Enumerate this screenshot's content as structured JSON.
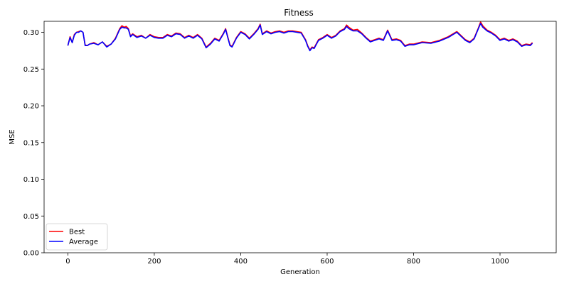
{
  "chart_data": {
    "type": "line",
    "title": "Fitness",
    "xlabel": "Generation",
    "ylabel": "MSE",
    "xlim": [
      -55,
      1130
    ],
    "ylim": [
      0,
      0.315
    ],
    "x_ticks": [
      0,
      200,
      400,
      600,
      800,
      1000
    ],
    "x_tick_labels": [
      "0",
      "200",
      "400",
      "600",
      "800",
      "1000"
    ],
    "y_ticks": [
      0.0,
      0.05,
      0.1,
      0.15,
      0.2,
      0.25,
      0.3
    ],
    "y_tick_labels": [
      "0.00",
      "0.05",
      "0.10",
      "0.15",
      "0.20",
      "0.25",
      "0.30"
    ],
    "grid": false,
    "legend_position": "lower-left",
    "series": [
      {
        "name": "Best",
        "color": "#ff0000",
        "x": [
          0,
          5,
          10,
          15,
          20,
          25,
          30,
          35,
          40,
          45,
          50,
          60,
          70,
          80,
          90,
          100,
          110,
          120,
          125,
          130,
          135,
          140,
          145,
          150,
          160,
          170,
          180,
          190,
          200,
          210,
          220,
          230,
          240,
          250,
          260,
          270,
          280,
          290,
          300,
          310,
          320,
          330,
          340,
          350,
          360,
          365,
          370,
          375,
          380,
          390,
          400,
          410,
          420,
          430,
          440,
          445,
          450,
          460,
          470,
          480,
          490,
          500,
          510,
          520,
          530,
          540,
          550,
          555,
          560,
          565,
          570,
          580,
          590,
          600,
          610,
          620,
          630,
          640,
          645,
          650,
          660,
          670,
          680,
          690,
          700,
          710,
          720,
          730,
          740,
          750,
          760,
          770,
          780,
          790,
          800,
          820,
          840,
          860,
          880,
          900,
          920,
          930,
          940,
          945,
          950,
          955,
          960,
          970,
          980,
          990,
          1000,
          1010,
          1020,
          1030,
          1040,
          1050,
          1060,
          1070,
          1075
        ],
        "y": [
          0.282,
          0.294,
          0.286,
          0.297,
          0.3,
          0.301,
          0.302,
          0.3,
          0.283,
          0.282,
          0.284,
          0.286,
          0.283,
          0.287,
          0.281,
          0.284,
          0.292,
          0.305,
          0.309,
          0.307,
          0.308,
          0.305,
          0.295,
          0.298,
          0.294,
          0.296,
          0.292,
          0.297,
          0.294,
          0.293,
          0.293,
          0.297,
          0.295,
          0.299,
          0.298,
          0.293,
          0.296,
          0.293,
          0.297,
          0.292,
          0.28,
          0.285,
          0.292,
          0.289,
          0.299,
          0.305,
          0.294,
          0.283,
          0.281,
          0.293,
          0.301,
          0.298,
          0.292,
          0.298,
          0.305,
          0.311,
          0.298,
          0.302,
          0.299,
          0.301,
          0.302,
          0.3,
          0.302,
          0.302,
          0.301,
          0.3,
          0.29,
          0.282,
          0.276,
          0.28,
          0.279,
          0.29,
          0.293,
          0.297,
          0.293,
          0.296,
          0.302,
          0.305,
          0.31,
          0.307,
          0.303,
          0.304,
          0.299,
          0.293,
          0.288,
          0.29,
          0.292,
          0.29,
          0.303,
          0.29,
          0.291,
          0.289,
          0.282,
          0.284,
          0.284,
          0.287,
          0.286,
          0.289,
          0.294,
          0.301,
          0.29,
          0.287,
          0.292,
          0.299,
          0.306,
          0.314,
          0.309,
          0.303,
          0.3,
          0.296,
          0.29,
          0.292,
          0.289,
          0.291,
          0.288,
          0.282,
          0.284,
          0.283,
          0.286
        ]
      },
      {
        "name": "Average",
        "color": "#0000ff",
        "x": [
          0,
          5,
          10,
          15,
          20,
          25,
          30,
          35,
          40,
          45,
          50,
          60,
          70,
          80,
          90,
          100,
          110,
          120,
          125,
          130,
          135,
          140,
          145,
          150,
          160,
          170,
          180,
          190,
          200,
          210,
          220,
          230,
          240,
          250,
          260,
          270,
          280,
          290,
          300,
          310,
          320,
          330,
          340,
          350,
          360,
          365,
          370,
          375,
          380,
          390,
          400,
          410,
          420,
          430,
          440,
          445,
          450,
          460,
          470,
          480,
          490,
          500,
          510,
          520,
          530,
          540,
          550,
          555,
          560,
          565,
          570,
          580,
          590,
          600,
          610,
          620,
          630,
          640,
          645,
          650,
          660,
          670,
          680,
          690,
          700,
          710,
          720,
          730,
          740,
          750,
          760,
          770,
          780,
          790,
          800,
          820,
          840,
          860,
          880,
          900,
          920,
          930,
          940,
          945,
          950,
          955,
          960,
          970,
          980,
          990,
          1000,
          1010,
          1020,
          1030,
          1040,
          1050,
          1060,
          1070,
          1075
        ],
        "y": [
          0.282,
          0.293,
          0.286,
          0.296,
          0.3,
          0.3,
          0.302,
          0.3,
          0.282,
          0.282,
          0.284,
          0.285,
          0.283,
          0.287,
          0.28,
          0.284,
          0.291,
          0.304,
          0.307,
          0.306,
          0.306,
          0.304,
          0.294,
          0.297,
          0.293,
          0.295,
          0.292,
          0.296,
          0.293,
          0.292,
          0.292,
          0.296,
          0.294,
          0.298,
          0.297,
          0.292,
          0.295,
          0.292,
          0.296,
          0.291,
          0.279,
          0.284,
          0.291,
          0.288,
          0.298,
          0.304,
          0.293,
          0.282,
          0.28,
          0.292,
          0.3,
          0.297,
          0.291,
          0.297,
          0.304,
          0.31,
          0.297,
          0.301,
          0.298,
          0.3,
          0.301,
          0.299,
          0.301,
          0.301,
          0.3,
          0.299,
          0.289,
          0.281,
          0.275,
          0.279,
          0.278,
          0.289,
          0.292,
          0.296,
          0.292,
          0.295,
          0.301,
          0.304,
          0.308,
          0.305,
          0.302,
          0.302,
          0.298,
          0.292,
          0.287,
          0.289,
          0.291,
          0.289,
          0.302,
          0.289,
          0.29,
          0.288,
          0.281,
          0.283,
          0.283,
          0.286,
          0.285,
          0.288,
          0.293,
          0.3,
          0.289,
          0.286,
          0.291,
          0.298,
          0.305,
          0.312,
          0.307,
          0.302,
          0.299,
          0.295,
          0.289,
          0.291,
          0.288,
          0.29,
          0.287,
          0.281,
          0.283,
          0.282,
          0.285
        ]
      }
    ]
  }
}
